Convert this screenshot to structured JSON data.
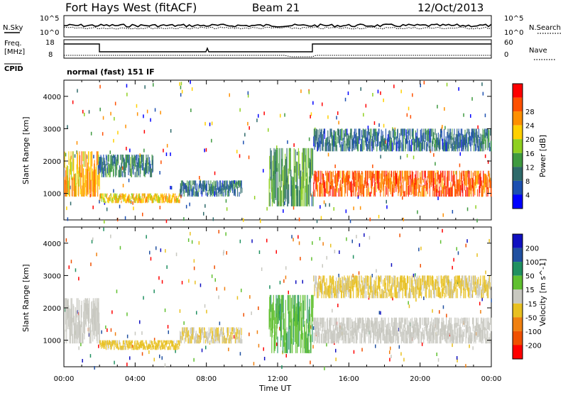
{
  "header": {
    "title": "Fort Hays West (fitACF)",
    "beam": "Beam 21",
    "date": "12/Oct/2013"
  },
  "status_panels": {
    "nsky_label": "N.Sky",
    "nsky_ticks": [
      "10^5",
      "10^0"
    ],
    "nsearch_label": "N.Search",
    "nsearch_ticks": [
      "10^5",
      "10^0"
    ],
    "freq_label": "Freq.",
    "freq_unit": "[MHz]",
    "freq_ticks": [
      "18",
      "8"
    ],
    "nave_label": "Nave",
    "nave_ticks": [
      "60",
      "0"
    ],
    "cpid_label": "CPID",
    "cpid_text": "normal (fast) 151 IF"
  },
  "chart_data": [
    {
      "type": "heatmap",
      "panel": "power",
      "ylabel": "Slant Range [km]",
      "ylim": [
        180,
        4500
      ],
      "yticks": [
        "1000",
        "2000",
        "3000",
        "4000"
      ],
      "colorbar_label": "Power [dB]",
      "colorbar_ticks": [
        "4",
        "8",
        "12",
        "16",
        "20",
        "24",
        "28"
      ],
      "colors": [
        "#0000ff",
        "#1c4fb0",
        "#2e6a6a",
        "#3f9a40",
        "#8fd020",
        "#ffd000",
        "#ff9000",
        "#ff5000",
        "#ff0000"
      ],
      "regions_hours_km_value": [
        {
          "t": [
            0.0,
            2.0
          ],
          "r": [
            900,
            2300
          ],
          "value": 22
        },
        {
          "t": [
            1.9,
            5.0
          ],
          "r": [
            1500,
            2200
          ],
          "value": 10
        },
        {
          "t": [
            2.0,
            6.5
          ],
          "r": [
            700,
            1000
          ],
          "value": 20
        },
        {
          "t": [
            6.5,
            10.0
          ],
          "r": [
            900,
            1400
          ],
          "value": 8
        },
        {
          "t": [
            11.5,
            14.0
          ],
          "r": [
            600,
            2400
          ],
          "value": 12
        },
        {
          "t": [
            14.0,
            24.0
          ],
          "r": [
            900,
            1700
          ],
          "value": 26
        },
        {
          "t": [
            14.0,
            24.0
          ],
          "r": [
            2300,
            3000
          ],
          "value": 8
        }
      ]
    },
    {
      "type": "heatmap",
      "panel": "velocity",
      "ylabel": "Slant Range [km]",
      "ylim": [
        180,
        4500
      ],
      "yticks": [
        "1000",
        "2000",
        "3000",
        "4000"
      ],
      "xlabel": "Time UT",
      "xticks": [
        "00:00",
        "04:00",
        "08:00",
        "12:00",
        "16:00",
        "20:00",
        "00:00"
      ],
      "colorbar_label": "Velocity [m s^-1]",
      "colorbar_ticks": [
        "200",
        "100",
        "50",
        "15",
        "-15",
        "-50",
        "-100",
        "-200"
      ],
      "colors": [
        "#1010c0",
        "#2050a0",
        "#209060",
        "#60c030",
        "#c8c8c0",
        "#e8c020",
        "#f08010",
        "#f05000",
        "#ff0000"
      ],
      "regions_hours_km_value": [
        {
          "t": [
            0.0,
            2.0
          ],
          "r": [
            900,
            2300
          ],
          "value": 0
        },
        {
          "t": [
            2.0,
            6.5
          ],
          "r": [
            700,
            1000
          ],
          "value": -40
        },
        {
          "t": [
            6.5,
            10.0
          ],
          "r": [
            900,
            1400
          ],
          "value": -20
        },
        {
          "t": [
            11.5,
            14.0
          ],
          "r": [
            600,
            2400
          ],
          "value": 60
        },
        {
          "t": [
            14.0,
            24.0
          ],
          "r": [
            900,
            1700
          ],
          "value": 0
        },
        {
          "t": [
            14.0,
            24.0
          ],
          "r": [
            2300,
            3000
          ],
          "value": -30
        }
      ]
    }
  ]
}
